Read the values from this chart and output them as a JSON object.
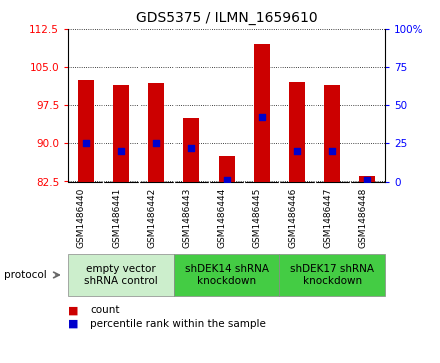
{
  "title": "GDS5375 / ILMN_1659610",
  "samples": [
    "GSM1486440",
    "GSM1486441",
    "GSM1486442",
    "GSM1486443",
    "GSM1486444",
    "GSM1486445",
    "GSM1486446",
    "GSM1486447",
    "GSM1486448"
  ],
  "count_values": [
    102.5,
    101.5,
    101.8,
    95.0,
    87.5,
    109.5,
    102.0,
    101.5,
    83.5
  ],
  "count_base": 82.5,
  "percentile_right": [
    25.0,
    20.0,
    25.0,
    22.0,
    1.0,
    42.0,
    20.0,
    20.0,
    1.0
  ],
  "ylim_left": [
    82.5,
    112.5
  ],
  "ylim_right": [
    0,
    100
  ],
  "yticks_left": [
    82.5,
    90.0,
    97.5,
    105.0,
    112.5
  ],
  "yticks_right": [
    0,
    25,
    50,
    75,
    100
  ],
  "bar_color": "#cc0000",
  "dot_color": "#0000cc",
  "groups": [
    {
      "label": "empty vector\nshRNA control",
      "start": 0,
      "end": 3,
      "color": "#cceecc"
    },
    {
      "label": "shDEK14 shRNA\nknockdown",
      "start": 3,
      "end": 6,
      "color": "#44cc44"
    },
    {
      "label": "shDEK17 shRNA\nknockdown",
      "start": 6,
      "end": 9,
      "color": "#44cc44"
    }
  ],
  "protocol_label": "protocol",
  "legend_count": "count",
  "legend_percentile": "percentile rank within the sample",
  "bg_color": "#ffffff",
  "plot_bg": "#ffffff",
  "xtick_area_bg": "#d8d8d8",
  "bar_width": 0.45,
  "title_fontsize": 10,
  "tick_fontsize": 7.5,
  "xtick_fontsize": 6.5,
  "group_label_fontsize": 7.5
}
